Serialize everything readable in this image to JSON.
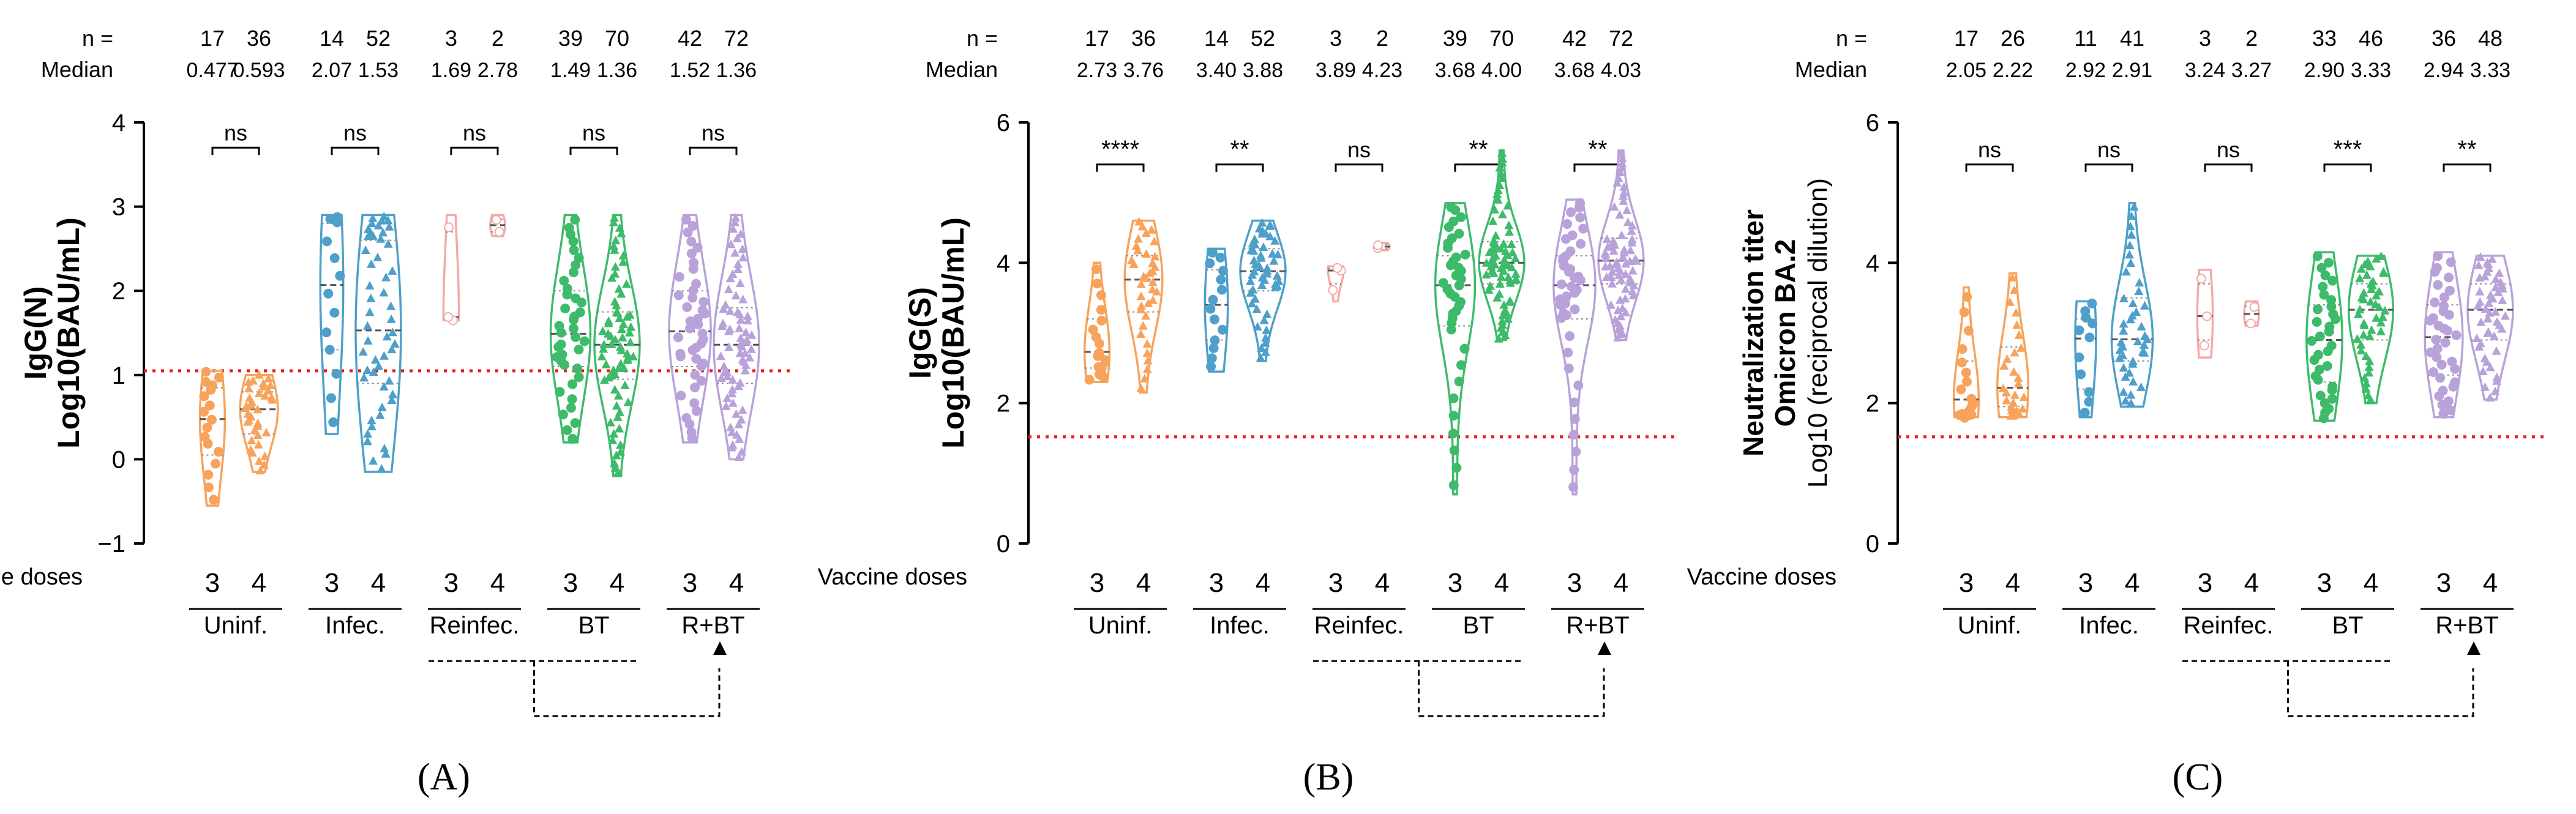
{
  "figure": {
    "colors": {
      "uninf": "#f7a35c",
      "infec": "#4e9fc9",
      "reinfec": "#f4a9a8",
      "bt": "#3dbb6a",
      "rbt": "#b9a2da",
      "threshold": "#e8201a",
      "axis": "#000000"
    },
    "row_labels": {
      "n": "n =",
      "median": "Median",
      "doses": "Vaccine doses"
    },
    "group_labels": [
      "Uninf.",
      "Infec.",
      "Reinfec.",
      "BT",
      "R+BT"
    ],
    "dose_labels": [
      "3",
      "4"
    ]
  },
  "chart_data": [
    {
      "type": "violin",
      "panel": "A",
      "panel_label": "(A)",
      "ylabel_line1": "IgG(N)",
      "ylabel_line2": "Log10(BAU/mL)",
      "ylim": [
        -1,
        4
      ],
      "yticks": [
        -1,
        0,
        1,
        2,
        3,
        4
      ],
      "ytick_labels": [
        "−1",
        "0",
        "1",
        "2",
        "3",
        "4"
      ],
      "threshold": 1.05,
      "groups": [
        {
          "name": "Uninf.",
          "n": [
            "17",
            "36"
          ],
          "median": [
            "0.477",
            "0.593"
          ],
          "sig": "ns",
          "dist": [
            {
              "min": -0.55,
              "q1": 0.05,
              "med": 0.477,
              "q3": 0.85,
              "max": 1.05
            },
            {
              "min": -0.15,
              "q1": 0.3,
              "med": 0.593,
              "q3": 0.8,
              "max": 1.0
            }
          ]
        },
        {
          "name": "Infec.",
          "n": [
            "14",
            "52"
          ],
          "median": [
            "2.07",
            "1.53"
          ],
          "sig": "ns",
          "dist": [
            {
              "min": 0.3,
              "q1": 1.3,
              "med": 2.07,
              "q3": 2.8,
              "max": 2.9
            },
            {
              "min": -0.15,
              "q1": 0.9,
              "med": 1.53,
              "q3": 2.6,
              "max": 2.9
            }
          ]
        },
        {
          "name": "Reinfec.",
          "n": [
            "3",
            "2"
          ],
          "median": [
            "1.69",
            "2.78"
          ],
          "sig": "ns",
          "dist": [
            {
              "min": 1.65,
              "q1": 1.67,
              "med": 1.69,
              "q3": 2.7,
              "max": 2.9
            },
            {
              "min": 2.65,
              "q1": 2.7,
              "med": 2.78,
              "q3": 2.85,
              "max": 2.9
            }
          ]
        },
        {
          "name": "BT",
          "n": [
            "39",
            "70"
          ],
          "median": [
            "1.49",
            "1.36"
          ],
          "sig": "ns",
          "dist": [
            {
              "min": 0.2,
              "q1": 1.1,
              "med": 1.49,
              "q3": 2.0,
              "max": 2.9
            },
            {
              "min": -0.2,
              "q1": 0.95,
              "med": 1.36,
              "q3": 1.75,
              "max": 2.9
            }
          ]
        },
        {
          "name": "R+BT",
          "n": [
            "42",
            "72"
          ],
          "median": [
            "1.52",
            "1.36"
          ],
          "sig": "ns",
          "dist": [
            {
              "min": 0.2,
              "q1": 1.1,
              "med": 1.52,
              "q3": 2.0,
              "max": 2.9
            },
            {
              "min": 0.0,
              "q1": 0.9,
              "med": 1.36,
              "q3": 1.8,
              "max": 2.9
            }
          ]
        }
      ]
    },
    {
      "type": "violin",
      "panel": "B",
      "panel_label": "(B)",
      "ylabel_line1": "IgG(S)",
      "ylabel_line2": "Log10(BAU/mL)",
      "ylim": [
        0,
        6
      ],
      "yticks": [
        0,
        2,
        4,
        6
      ],
      "ytick_labels": [
        "0",
        "2",
        "4",
        "6"
      ],
      "threshold": 1.52,
      "groups": [
        {
          "name": "Uninf.",
          "n": [
            "17",
            "36"
          ],
          "median": [
            "2.73",
            "3.76"
          ],
          "sig": "****",
          "dist": [
            {
              "min": 2.3,
              "q1": 2.5,
              "med": 2.73,
              "q3": 3.2,
              "max": 4.0
            },
            {
              "min": 2.15,
              "q1": 3.3,
              "med": 3.76,
              "q3": 4.1,
              "max": 4.6
            }
          ]
        },
        {
          "name": "Infec.",
          "n": [
            "14",
            "52"
          ],
          "median": [
            "3.40",
            "3.88"
          ],
          "sig": "**",
          "dist": [
            {
              "min": 2.45,
              "q1": 2.9,
              "med": 3.4,
              "q3": 3.9,
              "max": 4.2
            },
            {
              "min": 2.6,
              "q1": 3.6,
              "med": 3.88,
              "q3": 4.2,
              "max": 4.6
            }
          ]
        },
        {
          "name": "Reinfec.",
          "n": [
            "3",
            "2"
          ],
          "median": [
            "3.89",
            "4.23"
          ],
          "sig": "ns",
          "dist": [
            {
              "min": 3.45,
              "q1": 3.7,
              "med": 3.89,
              "q3": 3.92,
              "max": 3.95
            },
            {
              "min": 4.18,
              "q1": 4.2,
              "med": 4.23,
              "q3": 4.26,
              "max": 4.28
            }
          ]
        },
        {
          "name": "BT",
          "n": [
            "39",
            "70"
          ],
          "median": [
            "3.68",
            "4.00"
          ],
          "sig": "**",
          "dist": [
            {
              "min": 0.7,
              "q1": 3.1,
              "med": 3.68,
              "q3": 4.1,
              "max": 4.85
            },
            {
              "min": 2.9,
              "q1": 3.7,
              "med": 4.0,
              "q3": 4.3,
              "max": 5.6
            }
          ]
        },
        {
          "name": "R+BT",
          "n": [
            "42",
            "72"
          ],
          "median": [
            "3.68",
            "4.03"
          ],
          "sig": "**",
          "dist": [
            {
              "min": 0.7,
              "q1": 3.2,
              "med": 3.68,
              "q3": 4.1,
              "max": 4.9
            },
            {
              "min": 2.9,
              "q1": 3.7,
              "med": 4.03,
              "q3": 4.35,
              "max": 5.6
            }
          ]
        }
      ]
    },
    {
      "type": "violin",
      "panel": "C",
      "panel_label": "(C)",
      "ylabel_line1": "Neutralization titer",
      "ylabel_line2": "Omicron BA.2",
      "ylabel_line3": "Log10 (reciprocal dilution)",
      "ylim": [
        0,
        6
      ],
      "yticks": [
        0,
        2,
        4,
        6
      ],
      "ytick_labels": [
        "0",
        "2",
        "4",
        "6"
      ],
      "threshold": 1.52,
      "groups": [
        {
          "name": "Uninf.",
          "n": [
            "17",
            "26"
          ],
          "median": [
            "2.05",
            "2.22"
          ],
          "sig": "ns",
          "dist": [
            {
              "min": 1.8,
              "q1": 1.85,
              "med": 2.05,
              "q3": 2.6,
              "max": 3.65
            },
            {
              "min": 1.8,
              "q1": 1.95,
              "med": 2.22,
              "q3": 2.8,
              "max": 3.85
            }
          ]
        },
        {
          "name": "Infec.",
          "n": [
            "11",
            "41"
          ],
          "median": [
            "2.92",
            "2.91"
          ],
          "sig": "ns",
          "dist": [
            {
              "min": 1.8,
              "q1": 2.2,
              "med": 2.92,
              "q3": 3.2,
              "max": 3.45
            },
            {
              "min": 1.95,
              "q1": 2.6,
              "med": 2.91,
              "q3": 3.5,
              "max": 4.85
            }
          ]
        },
        {
          "name": "Reinfec.",
          "n": [
            "3",
            "2"
          ],
          "median": [
            "3.24",
            "3.27"
          ],
          "sig": "ns",
          "dist": [
            {
              "min": 2.65,
              "q1": 2.9,
              "med": 3.24,
              "q3": 3.7,
              "max": 3.9
            },
            {
              "min": 3.1,
              "q1": 3.15,
              "med": 3.27,
              "q3": 3.38,
              "max": 3.45
            }
          ]
        },
        {
          "name": "BT",
          "n": [
            "33",
            "46"
          ],
          "median": [
            "2.90",
            "3.33"
          ],
          "sig": "***",
          "dist": [
            {
              "min": 1.75,
              "q1": 2.3,
              "med": 2.9,
              "q3": 3.4,
              "max": 4.15
            },
            {
              "min": 2.0,
              "q1": 2.9,
              "med": 3.33,
              "q3": 3.7,
              "max": 4.1
            }
          ]
        },
        {
          "name": "R+BT",
          "n": [
            "36",
            "48"
          ],
          "median": [
            "2.94",
            "3.33"
          ],
          "sig": "**",
          "dist": [
            {
              "min": 1.8,
              "q1": 2.4,
              "med": 2.94,
              "q3": 3.4,
              "max": 4.15
            },
            {
              "min": 2.05,
              "q1": 2.9,
              "med": 3.33,
              "q3": 3.7,
              "max": 4.1
            }
          ]
        }
      ]
    }
  ]
}
